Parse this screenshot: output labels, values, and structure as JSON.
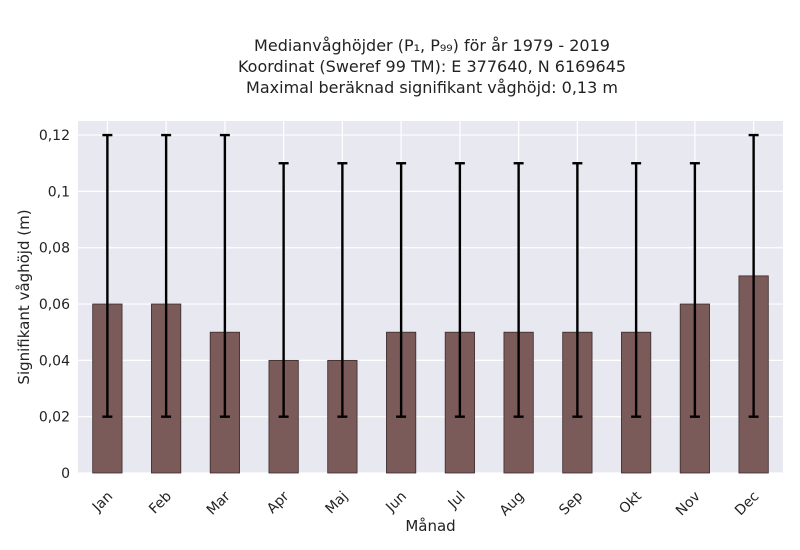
{
  "chart_data": {
    "type": "bar",
    "title_lines": [
      "Medianvåghöjder (P₁, P₉₉) för år 1979 - 2019",
      "Koordinat (Sweref 99 TM): E 377640, N 6169645",
      "Maximal beräknad signifikant våghöjd: 0,13 m"
    ],
    "xlabel": "Månad",
    "ylabel": "Signifikant våghöjd (m)",
    "categories": [
      "Jan",
      "Feb",
      "Mar",
      "Apr",
      "Maj",
      "Jun",
      "Jul",
      "Aug",
      "Sep",
      "Okt",
      "Nov",
      "Dec"
    ],
    "values": [
      0.06,
      0.06,
      0.05,
      0.04,
      0.04,
      0.05,
      0.05,
      0.05,
      0.05,
      0.05,
      0.06,
      0.07
    ],
    "error_low": [
      0.02,
      0.02,
      0.02,
      0.02,
      0.02,
      0.02,
      0.02,
      0.02,
      0.02,
      0.02,
      0.02,
      0.02
    ],
    "error_high": [
      0.12,
      0.12,
      0.12,
      0.11,
      0.11,
      0.11,
      0.11,
      0.11,
      0.11,
      0.11,
      0.11,
      0.12
    ],
    "yticks": [
      0,
      0.02,
      0.04,
      0.06,
      0.08,
      0.1,
      0.12
    ],
    "ytick_labels": [
      "0",
      "0,02",
      "0,04",
      "0,06",
      "0,08",
      "0,1",
      "0,12"
    ],
    "ylim": [
      0,
      0.125
    ],
    "grid": true,
    "colors": {
      "plot_background": "#e8e8f0",
      "grid": "#ffffff",
      "bar_fill": "#7b5a5a",
      "bar_edge": "#3a2a2a",
      "errorbar": "#000000"
    }
  }
}
